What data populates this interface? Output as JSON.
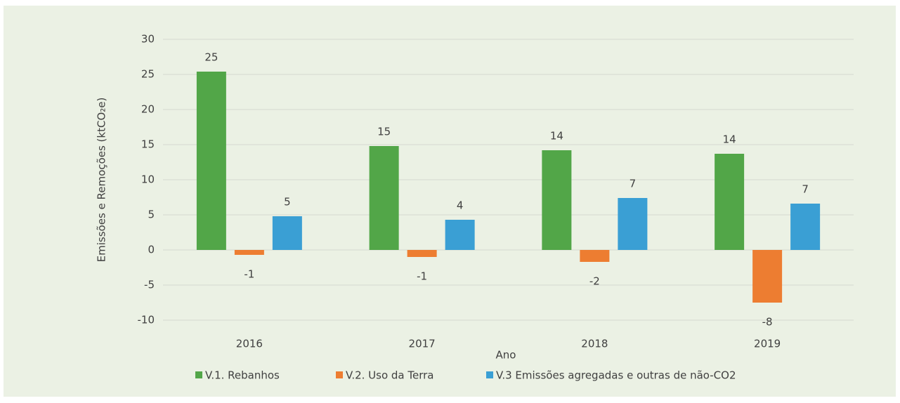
{
  "chart_data": {
    "type": "bar",
    "categories": [
      "2016",
      "2017",
      "2018",
      "2019"
    ],
    "series": [
      {
        "name": "V.1. Rebanhos",
        "color": "#52a648",
        "values": [
          25.4,
          14.8,
          14.2,
          13.7
        ],
        "value_labels": [
          "25",
          "15",
          "14",
          "14"
        ]
      },
      {
        "name": "V.2. Uso da Terra",
        "color": "#ed7d31",
        "values": [
          -0.7,
          -1.0,
          -1.7,
          -7.5
        ],
        "value_labels": [
          "-1",
          "-1",
          "-2",
          "-8"
        ]
      },
      {
        "name": "V.3 Emissões agregadas e outras de não-CO2",
        "color": "#3a9fd4",
        "values": [
          4.8,
          4.3,
          7.4,
          6.6
        ],
        "value_labels": [
          "5",
          "4",
          "7",
          "7"
        ]
      }
    ],
    "xlabel": "Ano",
    "ylabel": "Emissões e Remoções  (ktCO₂e)",
    "ylim": [
      -10,
      30
    ],
    "yticks": [
      -10,
      -5,
      0,
      5,
      10,
      15,
      20,
      25,
      30
    ],
    "grid": true,
    "legend": "bottom"
  }
}
